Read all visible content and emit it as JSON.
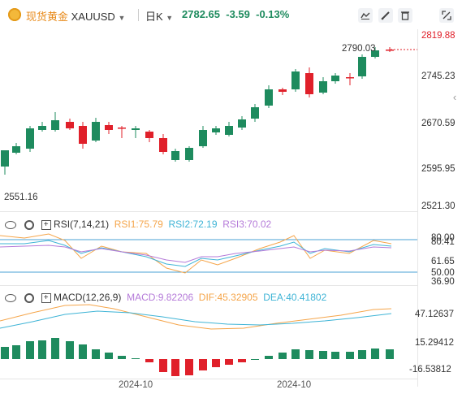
{
  "header": {
    "symbol_name": "现货黄金",
    "symbol_code": "XAUUSD",
    "timeframe": "日K",
    "price": "2782.65",
    "change": "-3.59",
    "change_pct": "-0.13%",
    "tool_icons": [
      "pattern-icon",
      "draw-icon",
      "delete-icon",
      "fullscreen-icon"
    ]
  },
  "main_chart": {
    "price_labels": [
      "2819.88",
      "2745.23",
      "2670.59",
      "2595.95",
      "2521.30"
    ],
    "last_price_label": "2790.03",
    "low_label": "2551.16",
    "colors": {
      "up": "#1e8b5e",
      "down": "#e0202a"
    }
  },
  "rsi": {
    "title": "RSI(7,14,21)",
    "rsi1": "RSI1:75.79",
    "rsi2": "RSI2:72.19",
    "rsi3": "RSI3:70.02",
    "levels": [
      "80.41",
      "61.65",
      "36.90"
    ],
    "ref_top": "80.00",
    "ref_bottom": "50.00",
    "colors": {
      "rsi1": "#f5a54a",
      "rsi2": "#3fb4d6",
      "rsi3": "#b57bd9"
    }
  },
  "macd": {
    "title": "MACD(12,26,9)",
    "macd": "MACD:9.82206",
    "dif": "DIF:45.32905",
    "dea": "DEA:40.41802",
    "levels": [
      "47.12637",
      "15.29412",
      "-16.53812"
    ],
    "colors": {
      "macd": "#b57bd9",
      "dif": "#f5a54a",
      "dea": "#3fb4d6"
    }
  },
  "x_axis": {
    "labels": [
      "2024-10",
      "2024-10"
    ]
  }
}
